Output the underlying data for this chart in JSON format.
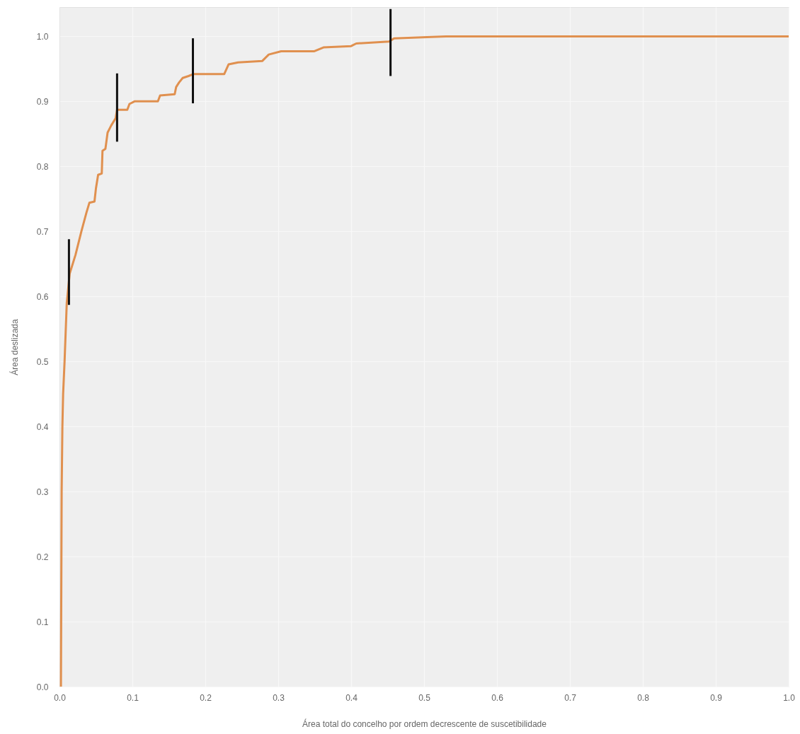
{
  "chart_data": {
    "type": "line",
    "xlabel": "Área total do concelho por ordem decrescente de suscetibilidade",
    "ylabel": "Área deslizada",
    "xlim": [
      0,
      1
    ],
    "ylim": [
      0,
      1.045
    ],
    "xticks": [
      {
        "value": 0,
        "label": "0.0"
      },
      0.1,
      0.2,
      0.3,
      0.4,
      0.5,
      0.6,
      0.7,
      0.8,
      0.9,
      {
        "value": 1,
        "label": "1.0"
      }
    ],
    "yticks": [
      {
        "value": 0,
        "label": "0.0"
      },
      0.1,
      0.2,
      0.3,
      0.4,
      0.5,
      0.6,
      0.7,
      0.8,
      0.9,
      {
        "value": 1,
        "label": "1.0"
      }
    ],
    "grid": true,
    "series": [
      {
        "color": "#e0904f",
        "x": [
          0.002,
          0.003,
          0.004,
          0.005,
          0.007,
          0.009,
          0.01,
          0.014,
          0.022,
          0.03,
          0.037,
          0.041,
          0.048,
          0.05,
          0.053,
          0.058,
          0.059,
          0.063,
          0.066,
          0.071,
          0.077,
          0.079,
          0.093,
          0.096,
          0.103,
          0.135,
          0.138,
          0.158,
          0.16,
          0.164,
          0.169,
          0.177,
          0.184,
          0.226,
          0.232,
          0.245,
          0.278,
          0.287,
          0.304,
          0.349,
          0.362,
          0.4,
          0.407,
          0.452,
          0.459,
          0.53,
          1.0
        ],
        "values": [
          0.0,
          0.3,
          0.4,
          0.45,
          0.5,
          0.56,
          0.59,
          0.635,
          0.664,
          0.7,
          0.729,
          0.744,
          0.746,
          0.766,
          0.787,
          0.789,
          0.824,
          0.827,
          0.852,
          0.863,
          0.874,
          0.887,
          0.887,
          0.896,
          0.9,
          0.9,
          0.909,
          0.911,
          0.922,
          0.929,
          0.936,
          0.939,
          0.942,
          0.942,
          0.957,
          0.96,
          0.962,
          0.972,
          0.977,
          0.977,
          0.983,
          0.985,
          0.989,
          0.992,
          0.997,
          1.0,
          1.0
        ]
      },
      {
        "color": "#111111",
        "x": [
          0.013,
          0.013
        ],
        "values": [
          0.587,
          0.688
        ]
      },
      {
        "color": "#111111",
        "x": [
          0.079,
          0.079
        ],
        "values": [
          0.838,
          0.943
        ]
      },
      {
        "color": "#111111",
        "x": [
          0.183,
          0.183
        ],
        "values": [
          0.897,
          0.997
        ]
      },
      {
        "color": "#111111",
        "x": [
          0.454,
          0.454
        ],
        "values": [
          0.939,
          1.042
        ]
      }
    ]
  }
}
